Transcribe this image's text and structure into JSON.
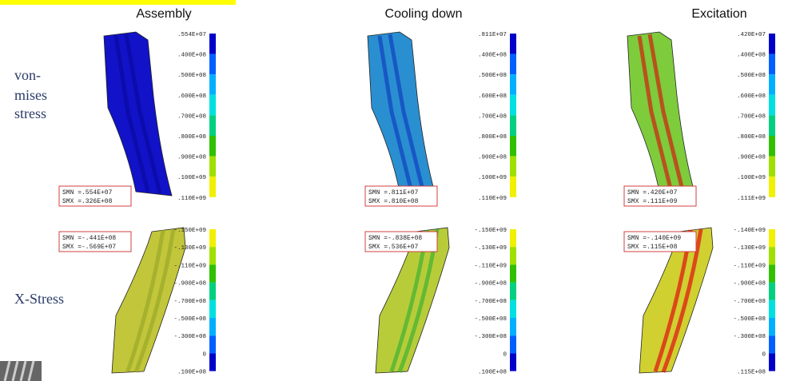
{
  "columns": [
    "Assembly",
    "Cooling down",
    "Excitation"
  ],
  "rows": [
    {
      "label": [
        "von-",
        "mises",
        "stress"
      ]
    },
    {
      "label": [
        "X-Stress"
      ]
    }
  ],
  "panels": [
    [
      {
        "legend": [
          ".554E+07",
          ".400E+08",
          ".500E+08",
          ".600E+08",
          ".700E+08",
          ".800E+08",
          ".900E+08",
          ".100E+09",
          ".110E+09"
        ],
        "smn": "SMN =.554E+07",
        "smx": "SMX =.326E+08"
      },
      {
        "legend": [
          ".811E+07",
          ".400E+08",
          ".500E+08",
          ".600E+08",
          ".700E+08",
          ".800E+08",
          ".900E+08",
          ".100E+09",
          ".110E+09"
        ],
        "smn": "SMN =.811E+07",
        "smx": "SMX =.810E+08"
      },
      {
        "legend": [
          ".420E+07",
          ".400E+08",
          ".500E+08",
          ".600E+08",
          ".700E+08",
          ".800E+08",
          ".900E+08",
          ".100E+09",
          ".111E+09"
        ],
        "smn": "SMN =.420E+07",
        "smx": "SMX =.111E+09"
      }
    ],
    [
      {
        "legend": [
          "-.150E+09",
          "-.130E+09",
          "-.110E+09",
          "-.900E+08",
          "-.700E+08",
          "-.500E+08",
          "-.300E+08",
          "0",
          ".100E+08"
        ],
        "smn": "SMN =-.441E+08",
        "smx": "SMX =-.569E+07"
      },
      {
        "legend": [
          "-.150E+09",
          "-.130E+09",
          "-.110E+09",
          "-.900E+08",
          "-.700E+08",
          "-.500E+08",
          "-.300E+08",
          "0",
          ".100E+08"
        ],
        "smn": "SMN =-.838E+08",
        "smx": "SMX =.536E+07"
      },
      {
        "legend": [
          "-.140E+09",
          "-.130E+09",
          "-.110E+09",
          "-.900E+08",
          "-.700E+08",
          "-.500E+08",
          "-.300E+08",
          "0",
          ".115E+08"
        ],
        "smn": "SMN =-.140E+09",
        "smx": "SMX =.115E+08"
      }
    ]
  ]
}
